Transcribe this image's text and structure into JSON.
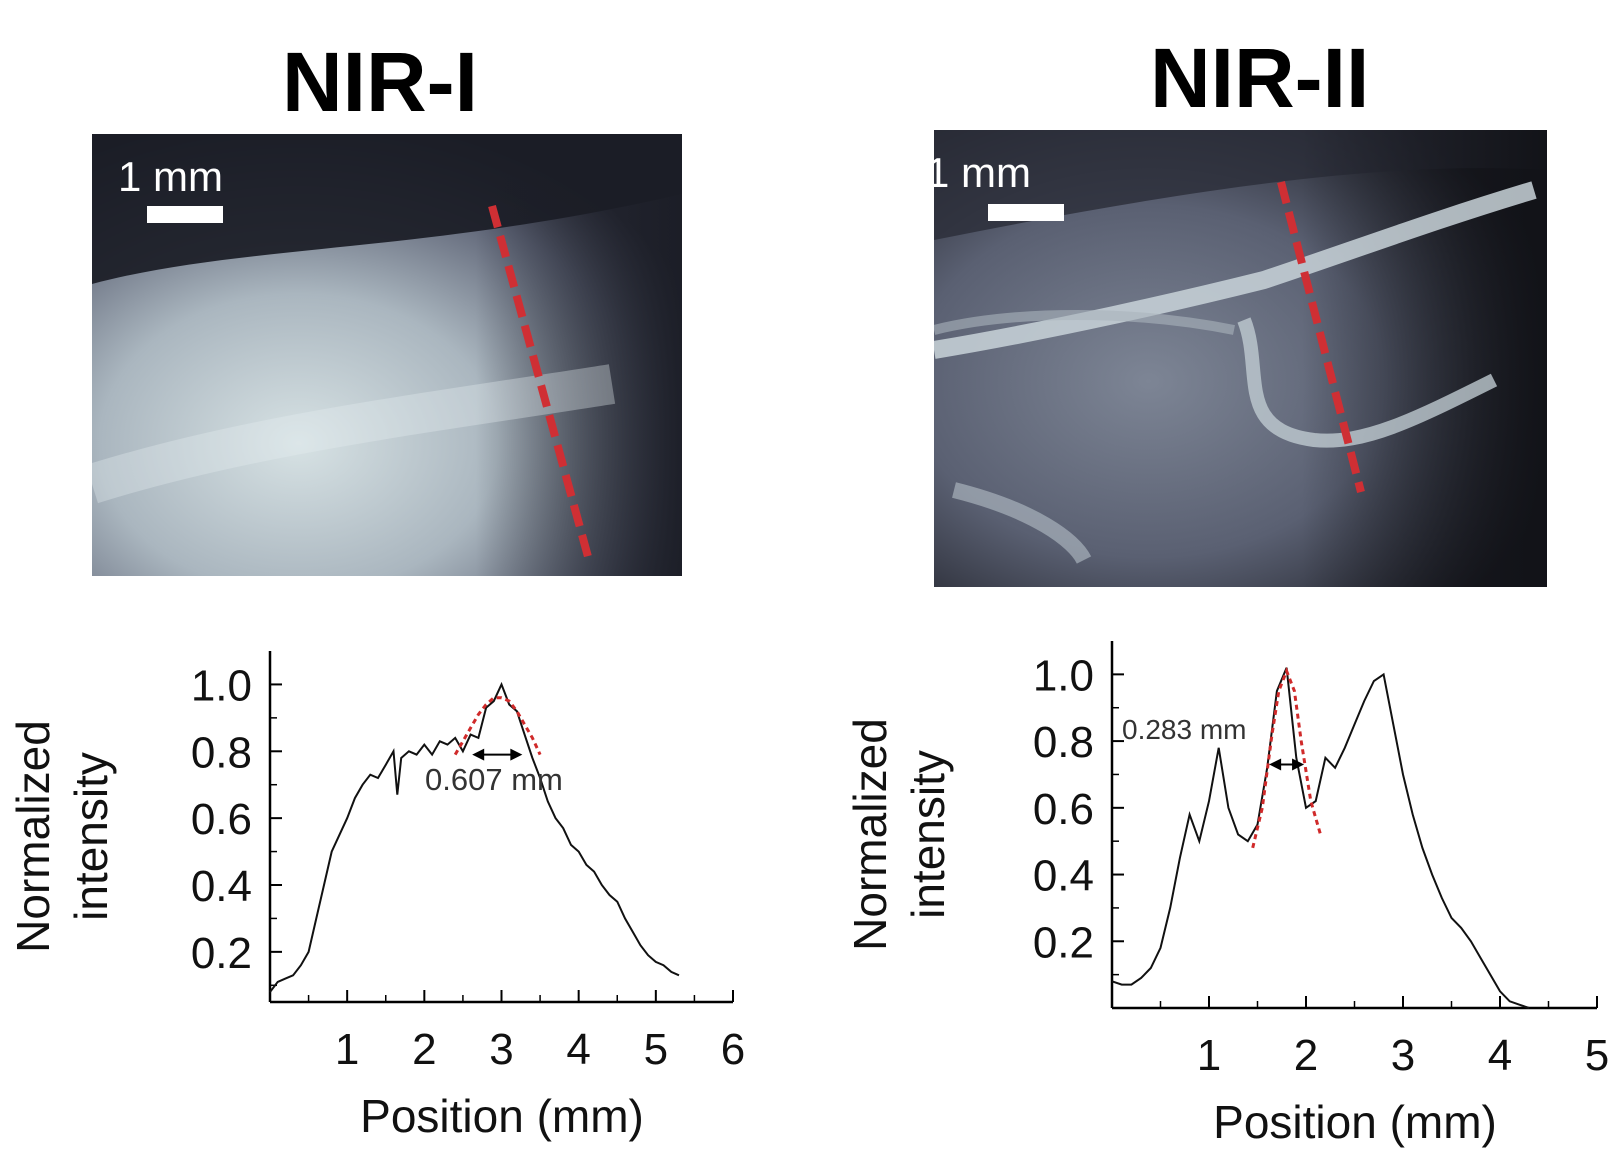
{
  "panels": {
    "left": {
      "title": "NIR-I",
      "scalebar_label": "1 mm",
      "fwhm_label": "0.607 mm"
    },
    "right": {
      "title": "NIR-II",
      "scalebar_label": "1 mm",
      "fwhm_label": "0.283 mm"
    }
  },
  "colors": {
    "profile_line": "#111111",
    "gaussian_fit": "#d02a2a",
    "dashed_cut_line": "#cf2f34"
  },
  "chart_data": [
    {
      "type": "line",
      "title": "NIR-I",
      "xlabel": "Position (mm)",
      "ylabel": "Normalized intensity",
      "xlim": [
        0,
        6
      ],
      "ylim": [
        0.05,
        1.1
      ],
      "xticks": [
        "1",
        "2",
        "3",
        "4",
        "5",
        "6"
      ],
      "yticks": [
        "0.2",
        "0.4",
        "0.6",
        "0.8",
        "1.0"
      ],
      "annotation": "0.607 mm",
      "series": [
        {
          "role": "profile",
          "x": [
            0.0,
            0.1,
            0.2,
            0.3,
            0.4,
            0.5,
            0.6,
            0.7,
            0.8,
            0.9,
            1.0,
            1.1,
            1.2,
            1.3,
            1.4,
            1.5,
            1.6,
            1.65,
            1.7,
            1.8,
            1.9,
            2.0,
            2.1,
            2.2,
            2.3,
            2.4,
            2.5,
            2.6,
            2.7,
            2.8,
            2.9,
            3.0,
            3.1,
            3.2,
            3.3,
            3.4,
            3.5,
            3.6,
            3.7,
            3.8,
            3.9,
            4.0,
            4.1,
            4.2,
            4.3,
            4.4,
            4.5,
            4.6,
            4.7,
            4.8,
            4.9,
            5.0,
            5.1,
            5.2,
            5.3
          ],
          "y": [
            0.08,
            0.11,
            0.12,
            0.13,
            0.16,
            0.2,
            0.3,
            0.4,
            0.5,
            0.55,
            0.6,
            0.66,
            0.7,
            0.73,
            0.72,
            0.76,
            0.8,
            0.67,
            0.78,
            0.8,
            0.79,
            0.82,
            0.79,
            0.83,
            0.82,
            0.84,
            0.8,
            0.85,
            0.84,
            0.93,
            0.95,
            1.0,
            0.94,
            0.92,
            0.85,
            0.78,
            0.72,
            0.65,
            0.6,
            0.57,
            0.52,
            0.5,
            0.46,
            0.44,
            0.4,
            0.37,
            0.35,
            0.3,
            0.26,
            0.22,
            0.19,
            0.17,
            0.16,
            0.14,
            0.13
          ]
        },
        {
          "role": "gaussian-fit",
          "x": [
            2.4,
            2.5,
            2.6,
            2.7,
            2.8,
            2.9,
            3.0,
            3.1,
            3.2,
            3.3,
            3.4,
            3.5
          ],
          "y": [
            0.79,
            0.83,
            0.87,
            0.91,
            0.94,
            0.96,
            0.96,
            0.95,
            0.92,
            0.88,
            0.84,
            0.79
          ]
        }
      ]
    },
    {
      "type": "line",
      "title": "NIR-II",
      "xlabel": "Position (mm)",
      "ylabel": "Normalized intensity",
      "xlim": [
        0,
        5
      ],
      "ylim": [
        0,
        1.1
      ],
      "xticks": [
        "1",
        "2",
        "3",
        "4",
        "5"
      ],
      "yticks": [
        "0.2",
        "0.4",
        "0.6",
        "0.8",
        "1.0"
      ],
      "annotation": "0.283 mm",
      "series": [
        {
          "role": "profile",
          "x": [
            0.0,
            0.1,
            0.2,
            0.3,
            0.4,
            0.5,
            0.6,
            0.7,
            0.8,
            0.9,
            1.0,
            1.1,
            1.2,
            1.3,
            1.4,
            1.5,
            1.6,
            1.7,
            1.8,
            1.9,
            2.0,
            2.1,
            2.2,
            2.3,
            2.4,
            2.5,
            2.6,
            2.7,
            2.8,
            2.9,
            3.0,
            3.1,
            3.2,
            3.3,
            3.4,
            3.5,
            3.6,
            3.7,
            3.8,
            3.9,
            4.0,
            4.1,
            4.2,
            4.3
          ],
          "y": [
            0.08,
            0.07,
            0.07,
            0.09,
            0.12,
            0.18,
            0.3,
            0.45,
            0.58,
            0.5,
            0.62,
            0.78,
            0.6,
            0.52,
            0.5,
            0.55,
            0.72,
            0.95,
            1.02,
            0.75,
            0.6,
            0.62,
            0.75,
            0.72,
            0.78,
            0.85,
            0.92,
            0.98,
            1.0,
            0.85,
            0.7,
            0.58,
            0.48,
            0.4,
            0.33,
            0.27,
            0.24,
            0.2,
            0.15,
            0.1,
            0.05,
            0.02,
            0.01,
            0.0
          ]
        },
        {
          "role": "gaussian-fit",
          "x": [
            1.45,
            1.55,
            1.65,
            1.72,
            1.8,
            1.88,
            1.95,
            2.05,
            2.15
          ],
          "y": [
            0.48,
            0.6,
            0.82,
            0.95,
            1.01,
            0.95,
            0.8,
            0.62,
            0.52
          ]
        }
      ]
    }
  ]
}
